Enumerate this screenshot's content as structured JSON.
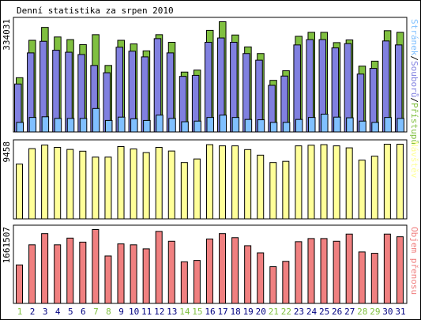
{
  "title": "Denní statistika za srpen 2010",
  "colors": {
    "hits": "#80c040",
    "files": "#8080e0",
    "pages": "#80c0ff",
    "visits": "#ffff99",
    "kbytes": "#f08080",
    "weekend_label": "#80c040",
    "weekday_label": "#000080",
    "frame": "#000000",
    "background": "#ffffff"
  },
  "chart_data": [
    {
      "type": "bar",
      "panel": "requests",
      "max_label": "334031",
      "ylim": [
        0,
        334031
      ],
      "side_label_parts": [
        {
          "text": "Stránek",
          "color_key": "pages"
        },
        {
          "text": "/",
          "color_key": "frame"
        },
        {
          "text": "Souborů",
          "color_key": "files"
        },
        {
          "text": "/",
          "color_key": "frame"
        },
        {
          "text": "Přístupů",
          "color_key": "hits"
        }
      ],
      "categories": [
        "1",
        "2",
        "3",
        "4",
        "5",
        "6",
        "7",
        "8",
        "9",
        "10",
        "11",
        "12",
        "13",
        "14",
        "15",
        "16",
        "17",
        "18",
        "19",
        "20",
        "21",
        "22",
        "23",
        "24",
        "25",
        "26",
        "27",
        "28",
        "29",
        "30",
        "31"
      ],
      "series": [
        {
          "name": "Přístupů",
          "color_key": "hits",
          "values": [
            165000,
            278000,
            317000,
            288000,
            280000,
            265000,
            295000,
            202000,
            278000,
            267000,
            246000,
            295000,
            272000,
            182000,
            188000,
            308000,
            334000,
            294000,
            258000,
            238000,
            157000,
            186000,
            290000,
            302000,
            302000,
            271000,
            279000,
            200000,
            215000,
            307000,
            302000
          ]
        },
        {
          "name": "Souborů",
          "color_key": "files",
          "values": [
            146000,
            240000,
            275000,
            248000,
            242000,
            235000,
            202000,
            180000,
            257000,
            245000,
            228000,
            283000,
            240000,
            169000,
            172000,
            272000,
            285000,
            272000,
            238000,
            218000,
            142000,
            170000,
            264000,
            280000,
            280000,
            255000,
            268000,
            176000,
            193000,
            276000,
            264000
          ]
        },
        {
          "name": "Stránek",
          "color_key": "pages",
          "values": [
            30000,
            45000,
            47000,
            42000,
            42000,
            42000,
            72000,
            36000,
            46000,
            41000,
            36000,
            52000,
            42000,
            32000,
            34000,
            45000,
            52000,
            45000,
            39000,
            38000,
            30000,
            30000,
            39000,
            45000,
            55000,
            46000,
            44000,
            34000,
            30000,
            45000,
            42000
          ]
        }
      ]
    },
    {
      "type": "bar",
      "panel": "visits",
      "max_label": "9458",
      "ylim": [
        0,
        9458
      ],
      "side_label_parts": [
        {
          "text": "Návštěv",
          "color_key": "visits"
        }
      ],
      "categories": [
        "1",
        "2",
        "3",
        "4",
        "5",
        "6",
        "7",
        "8",
        "9",
        "10",
        "11",
        "12",
        "13",
        "14",
        "15",
        "16",
        "17",
        "18",
        "19",
        "20",
        "21",
        "22",
        "23",
        "24",
        "25",
        "26",
        "27",
        "28",
        "29",
        "30",
        "31"
      ],
      "series": [
        {
          "name": "Návštěv",
          "color_key": "visits",
          "values": [
            6950,
            8900,
            9350,
            9060,
            8800,
            8580,
            7830,
            7830,
            9160,
            8860,
            8400,
            9060,
            8600,
            7150,
            7600,
            9400,
            9250,
            9250,
            8780,
            8080,
            7150,
            7300,
            9250,
            9330,
            9400,
            9250,
            9000,
            7450,
            7950,
            9458,
            9458
          ]
        }
      ]
    },
    {
      "type": "bar",
      "panel": "kbytes",
      "max_label": "1661507",
      "ylim": [
        0,
        1661507
      ],
      "side_label_parts": [
        {
          "text": "Objem přenosu",
          "color_key": "kbytes"
        }
      ],
      "categories": [
        "1",
        "2",
        "3",
        "4",
        "5",
        "6",
        "7",
        "8",
        "9",
        "10",
        "11",
        "12",
        "13",
        "14",
        "15",
        "16",
        "17",
        "18",
        "19",
        "20",
        "21",
        "22",
        "23",
        "24",
        "25",
        "26",
        "27",
        "28",
        "29",
        "30",
        "31"
      ],
      "series": [
        {
          "name": "Objem přenosu",
          "color_key": "kbytes",
          "values": [
            870000,
            1320000,
            1570000,
            1320000,
            1470000,
            1380000,
            1661507,
            1070000,
            1340000,
            1320000,
            1230000,
            1620000,
            1400000,
            940000,
            970000,
            1450000,
            1570000,
            1480000,
            1300000,
            1140000,
            830000,
            950000,
            1390000,
            1460000,
            1460000,
            1400000,
            1560000,
            1160000,
            1130000,
            1560000,
            1500000
          ]
        }
      ]
    }
  ],
  "weekend_days": [
    "1",
    "7",
    "8",
    "14",
    "15",
    "21",
    "22",
    "28",
    "29"
  ]
}
